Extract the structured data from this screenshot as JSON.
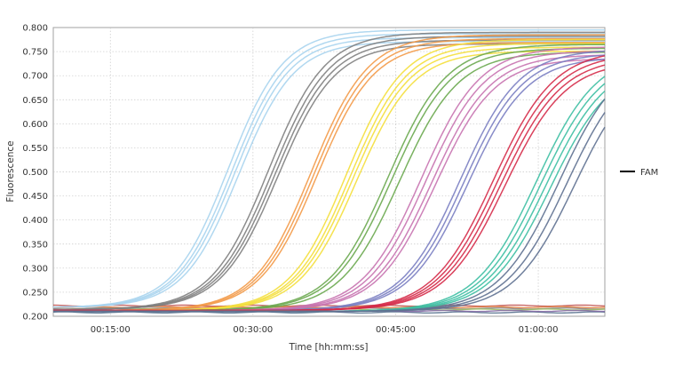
{
  "chart_data": {
    "type": "line",
    "title": "",
    "xlabel": "Time [hh:mm:ss]",
    "ylabel": "Fluorescence",
    "x_range_minutes": [
      9,
      67
    ],
    "ylim": [
      0.2,
      0.8
    ],
    "x_ticks": [
      {
        "minutes": 15,
        "label": "00:15:00"
      },
      {
        "minutes": 30,
        "label": "00:30:00"
      },
      {
        "minutes": 45,
        "label": "00:45:00"
      },
      {
        "minutes": 60,
        "label": "01:00:00"
      }
    ],
    "y_ticks": [
      {
        "value": 0.2,
        "label": "0.200"
      },
      {
        "value": 0.25,
        "label": "0.250"
      },
      {
        "value": 0.3,
        "label": "0.300"
      },
      {
        "value": 0.35,
        "label": "0.350"
      },
      {
        "value": 0.4,
        "label": "0.400"
      },
      {
        "value": 0.45,
        "label": "0.450"
      },
      {
        "value": 0.5,
        "label": "0.500"
      },
      {
        "value": 0.55,
        "label": "0.550"
      },
      {
        "value": 0.6,
        "label": "0.600"
      },
      {
        "value": 0.65,
        "label": "0.650"
      },
      {
        "value": 0.7,
        "label": "0.700"
      },
      {
        "value": 0.75,
        "label": "0.750"
      },
      {
        "value": 0.8,
        "label": "0.800"
      }
    ],
    "grid": true,
    "legend": {
      "placement": "right",
      "entries": [
        {
          "name": "FAM",
          "color": "#000000"
        }
      ]
    },
    "series_groups": [
      {
        "color": "#a8d4ee",
        "baseline": 0.218,
        "plateau": 0.795,
        "midpoint_minutes": [
          27.4,
          27.8,
          28.1,
          28.5
        ],
        "slope_minutes": 2.9
      },
      {
        "color": "#7f7f7f",
        "baseline": 0.214,
        "plateau": 0.79,
        "midpoint_minutes": [
          31.6,
          32.0,
          32.3,
          32.6
        ],
        "slope_minutes": 3.0
      },
      {
        "color": "#f39a48",
        "baseline": 0.212,
        "plateau": 0.785,
        "midpoint_minutes": [
          36.1,
          36.4,
          36.7
        ],
        "slope_minutes": 3.0
      },
      {
        "color": "#f4df3c",
        "baseline": 0.212,
        "plateau": 0.775,
        "midpoint_minutes": [
          39.8,
          40.2,
          40.5,
          40.9
        ],
        "slope_minutes": 3.0
      },
      {
        "color": "#6aa84f",
        "baseline": 0.212,
        "plateau": 0.765,
        "midpoint_minutes": [
          44.2,
          44.6,
          45.4
        ],
        "slope_minutes": 3.1
      },
      {
        "color": "#c873b0",
        "baseline": 0.212,
        "plateau": 0.76,
        "midpoint_minutes": [
          47.7,
          48.2,
          48.8,
          49.2
        ],
        "slope_minutes": 3.1
      },
      {
        "color": "#7a7ec2",
        "baseline": 0.212,
        "plateau": 0.755,
        "midpoint_minutes": [
          51.8,
          52.2,
          52.6
        ],
        "slope_minutes": 3.1
      },
      {
        "color": "#d52b49",
        "baseline": 0.212,
        "plateau": 0.755,
        "midpoint_minutes": [
          55.3,
          55.7,
          56.1,
          56.5
        ],
        "slope_minutes": 3.2
      },
      {
        "color": "#3dbfa3",
        "baseline": 0.21,
        "plateau": 0.75,
        "midpoint_minutes": [
          59.8,
          60.3,
          60.8,
          61.3
        ],
        "slope_minutes": 3.2
      },
      {
        "color": "#5f7191",
        "baseline": 0.21,
        "plateau": 0.75,
        "midpoint_minutes": [
          62.2,
          63.0,
          63.8
        ],
        "slope_minutes": 3.2
      }
    ],
    "flat_series": [
      {
        "color": "#c0504d",
        "value": 0.222
      },
      {
        "color": "#7f7f7f",
        "value": 0.216
      },
      {
        "color": "#9bbb59",
        "value": 0.214
      },
      {
        "color": "#4f6b8a",
        "value": 0.208
      },
      {
        "color": "#8064a2",
        "value": 0.211
      },
      {
        "color": "#e07b39",
        "value": 0.219
      }
    ]
  }
}
